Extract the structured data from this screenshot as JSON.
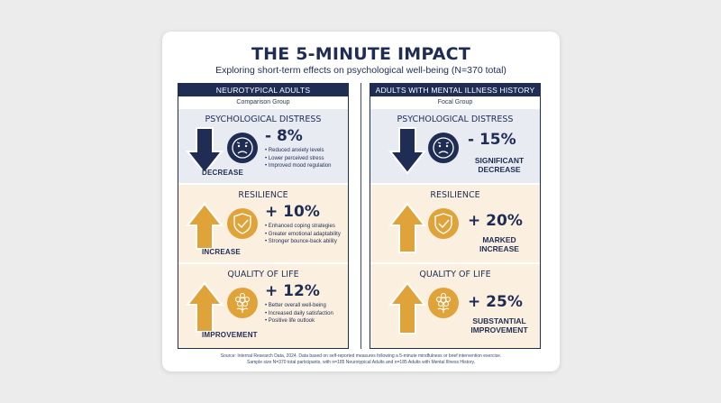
{
  "title": "THE 5-MINUTE IMPACT",
  "subtitle": "Exploring short-term effects on psychological well-being (N=370 total)",
  "left": {
    "header": "NEUROTYPICAL ADULTS",
    "subheader": "Comparison Group",
    "distress": {
      "title": "PSYCHOLOGICAL DISTRESS",
      "value": "- 8%",
      "caption": "DECREASE",
      "bullets": [
        "Reduced anxiety levels",
        "Lower perceived stress",
        "Improved mood regulation"
      ]
    },
    "resilience": {
      "title": "RESILIENCE",
      "value": "+ 10%",
      "caption": "INCREASE",
      "bullets": [
        "Enhanced coping strategies",
        "Greater emotional adaptability",
        "Stronger bounce-back ability"
      ]
    },
    "qol": {
      "title": "QUALITY OF LIFE",
      "value": "+ 12%",
      "caption": "IMPROVEMENT",
      "bullets": [
        "Better overall well-being",
        "Increased daily satisfaction",
        "Positive life outlook"
      ]
    }
  },
  "right": {
    "header": "ADULTS WITH MENTAL ILLNESS HISTORY",
    "subheader": "Focal Group",
    "distress": {
      "title": "PSYCHOLOGICAL DISTRESS",
      "value": "- 15%",
      "caption_line1": "SIGNIFICANT",
      "caption_line2": "DECREASE"
    },
    "resilience": {
      "title": "RESILIENCE",
      "value": "+ 20%",
      "caption_line1": "MARKED",
      "caption_line2": "INCREASE"
    },
    "qol": {
      "title": "QUALITY OF LIFE",
      "value": "+ 25%",
      "caption_line1": "SUBSTANTIAL",
      "caption_line2": "IMPROVEMENT"
    }
  },
  "footer": {
    "line1": "Source: Internal Research Data, 2024. Data based on self-reported measures following a 5-minute mindfulness or brief intervention exercise.",
    "line2": "Sample size N=370 total participants, with n=185 Neurotypical Adults and n=185 Adults with Mental Illness History."
  },
  "colors": {
    "navy": "#1f2d55",
    "gold": "#e0a33a",
    "distress_bg": "#e8ebf2",
    "positive_bg": "#fbefe0"
  },
  "icons": [
    "down-arrow-icon",
    "sad-face-icon",
    "up-arrow-icon",
    "shield-check-icon",
    "flower-icon"
  ]
}
